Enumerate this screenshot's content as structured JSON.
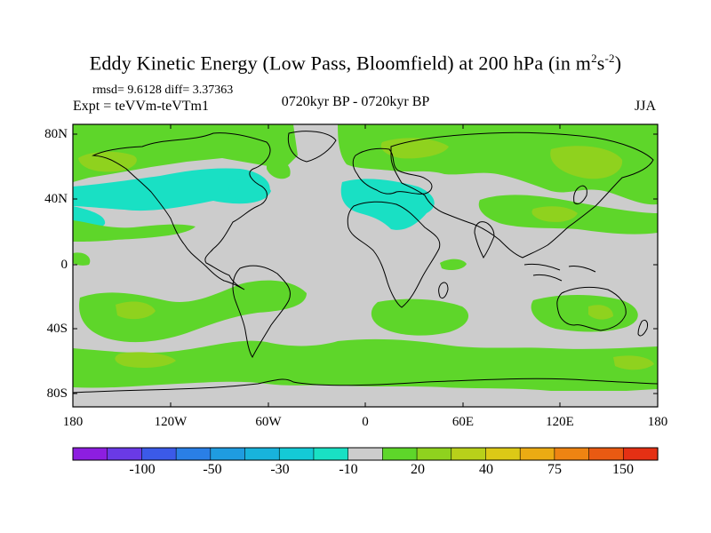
{
  "title_main": "Eddy Kinetic Energy (Low Pass, Bloomfield) at 200 hPa (in m",
  "title_sup1": "2",
  "title_mid": "s",
  "title_sup2": "-2",
  "title_end": ")",
  "stats": "rmsd= 9.6128  diff= 3.37363",
  "expt": "Expt = teVVm-teVTm1",
  "period": "0720kyr BP - 0720kyr BP",
  "season": "JJA",
  "y_ticks": [
    "80N",
    "40N",
    "0",
    "40S",
    "80S"
  ],
  "x_ticks": [
    "180",
    "120W",
    "60W",
    "0",
    "60E",
    "120E",
    "180"
  ],
  "colorbar": {
    "colors": [
      "#8d1ee0",
      "#6a3ae6",
      "#3b5ae8",
      "#2a7fe6",
      "#1f9ce0",
      "#18b3dc",
      "#14cad6",
      "#19e0c4",
      "#cccccc",
      "#5ed62a",
      "#8fd21e",
      "#b8d01a",
      "#dcc916",
      "#ebab13",
      "#ee8412",
      "#e95a12",
      "#e43014"
    ],
    "labels": [
      "-100",
      "-50",
      "-30",
      "-10",
      "20",
      "40",
      "75",
      "150"
    ]
  },
  "colors": {
    "neutral": "#cccccc",
    "green_light": "#5ed62a",
    "green_mid": "#8fd21e",
    "cyan": "#19e0c4"
  }
}
